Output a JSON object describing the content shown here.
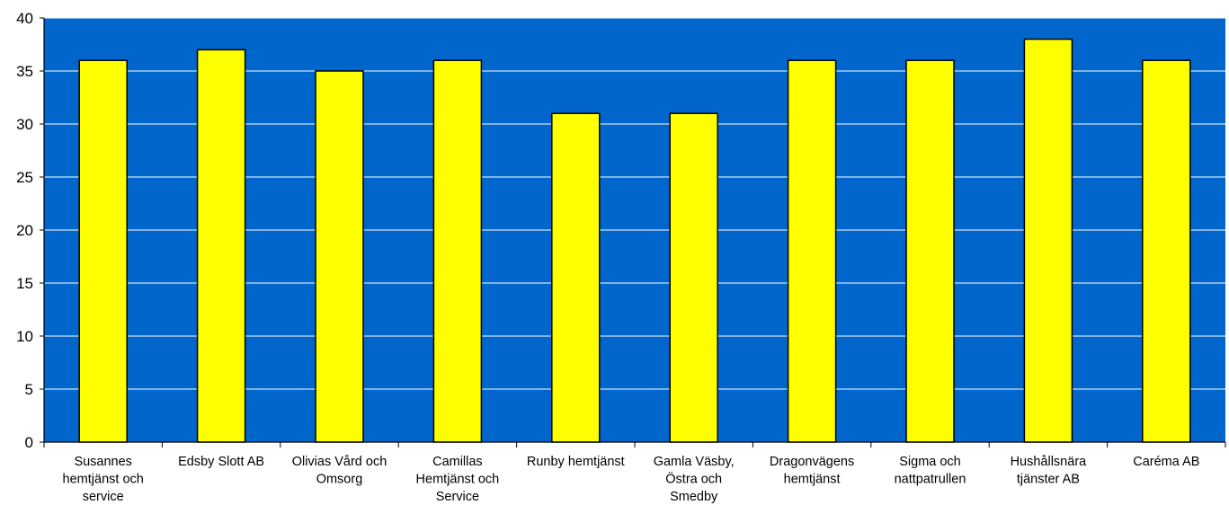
{
  "chart_data": {
    "type": "bar",
    "categories": [
      [
        "Susannes",
        "hemtjänst och",
        "service"
      ],
      [
        "Edsby Slott AB"
      ],
      [
        "Olivias Vård och",
        "Omsorg"
      ],
      [
        "Camillas",
        "Hemtjänst och",
        "Service"
      ],
      [
        "Runby hemtjänst"
      ],
      [
        "Gamla Väsby,",
        "Östra och",
        "Smedby"
      ],
      [
        "Dragonvägens",
        "hemtjänst"
      ],
      [
        "Sigma och",
        "nattpatrullen"
      ],
      [
        "Hushållsnära",
        "tjänster AB"
      ],
      [
        "Caréma AB"
      ]
    ],
    "values": [
      36,
      37,
      35,
      36,
      31,
      31,
      36,
      36,
      38,
      36
    ],
    "title": "",
    "xlabel": "",
    "ylabel": "",
    "ylim": [
      0,
      40
    ],
    "yticks": [
      "0",
      "5",
      "10",
      "15",
      "20",
      "25",
      "30",
      "35",
      "40"
    ],
    "grid": true,
    "legend": "none",
    "colors": {
      "plot_background": "#0066CC",
      "bar_fill": "#FFFF00",
      "bar_stroke": "#000000",
      "grid": "#FFFFFF",
      "axis": "#000000"
    }
  }
}
